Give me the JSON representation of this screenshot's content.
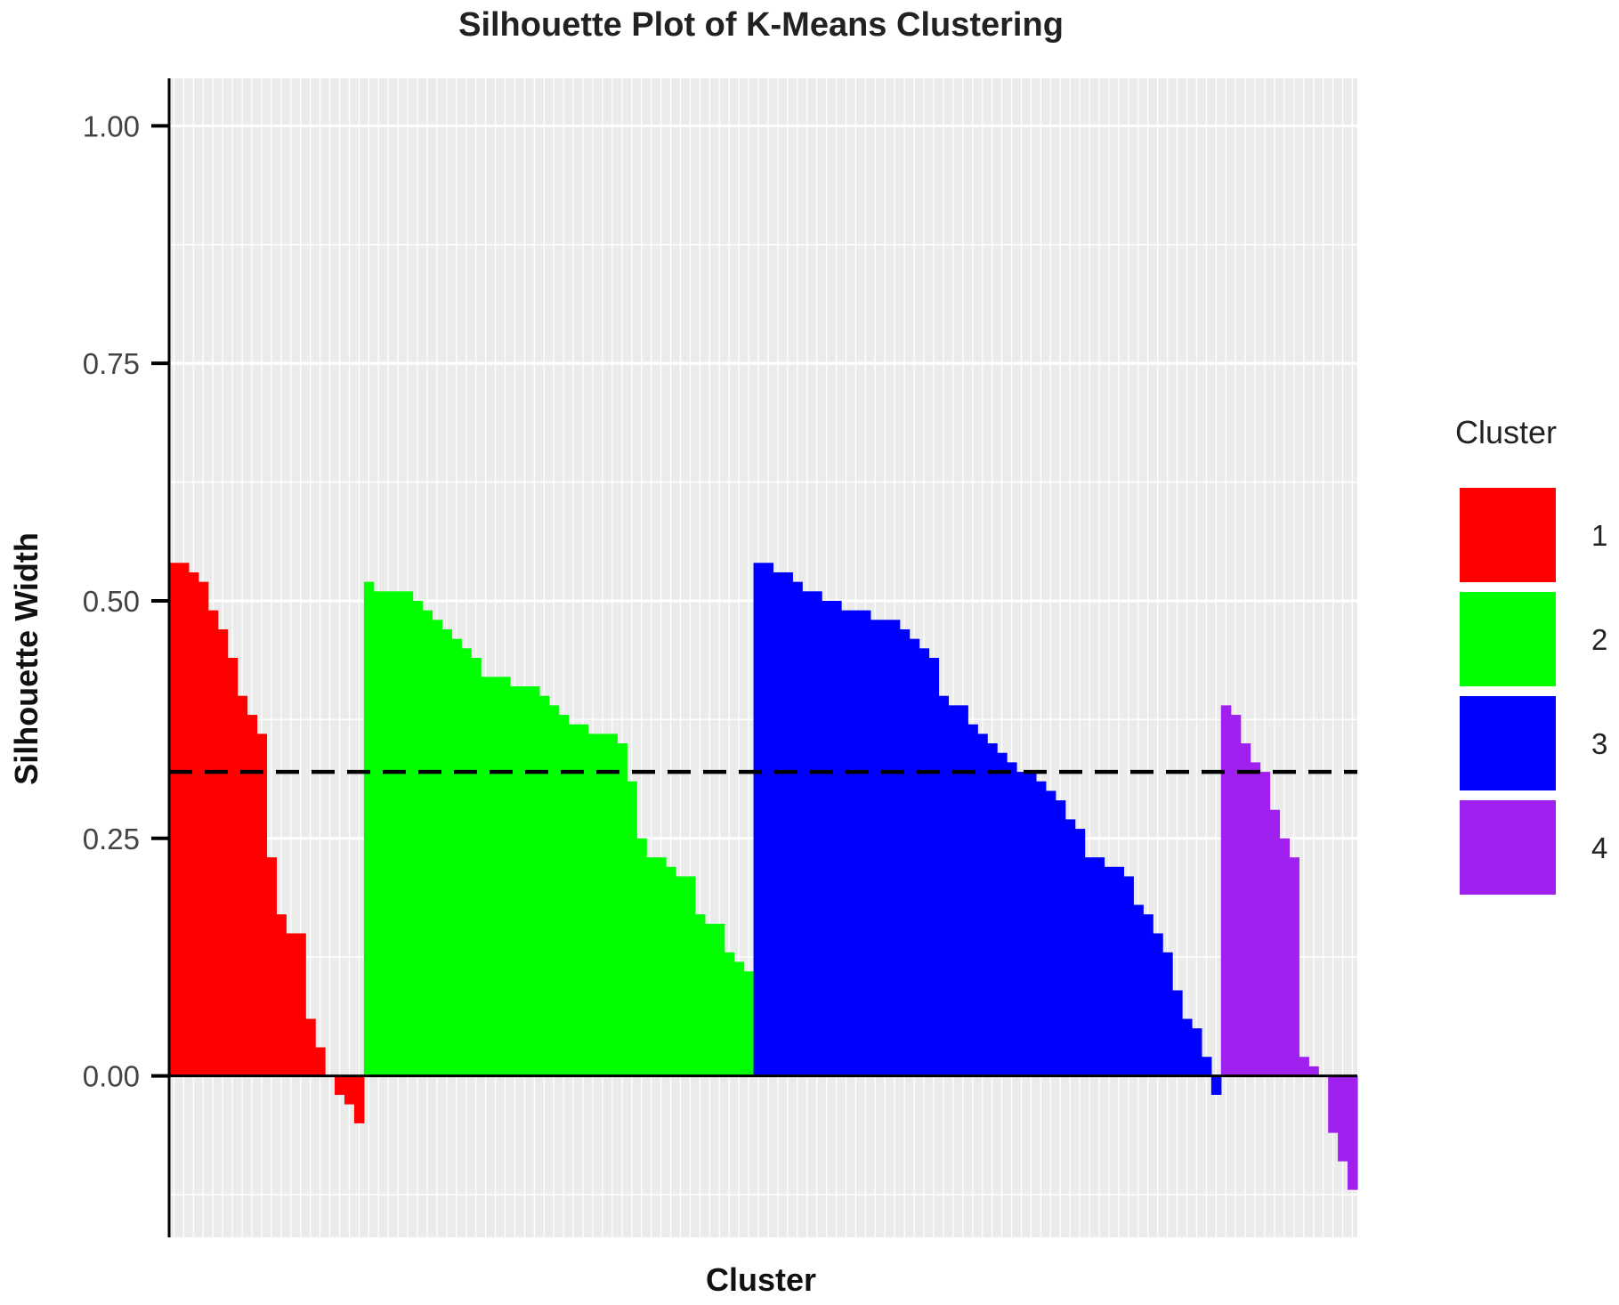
{
  "chart_data": {
    "type": "bar",
    "title": "Silhouette Plot of K-Means Clustering",
    "xlabel": "Cluster",
    "ylabel": "Silhouette Width",
    "ylim": [
      -0.17,
      1.05
    ],
    "yticks": [
      0,
      0.25,
      0.5,
      0.75,
      1
    ],
    "ytick_labels": [
      "0.00",
      "0.25",
      "0.50",
      "0.75",
      "1.00"
    ],
    "average_silhouette_width": 0.32,
    "grid": true,
    "legend": {
      "title": "Cluster",
      "position": "right"
    },
    "series": [
      {
        "name": "1",
        "color": "#ff0000",
        "values": [
          0.54,
          0.54,
          0.53,
          0.52,
          0.49,
          0.47,
          0.44,
          0.4,
          0.38,
          0.36,
          0.23,
          0.17,
          0.15,
          0.15,
          0.06,
          0.03,
          0.0,
          -0.02,
          -0.03,
          -0.05
        ]
      },
      {
        "name": "2",
        "color": "#00ff00",
        "values": [
          0.52,
          0.51,
          0.51,
          0.51,
          0.51,
          0.5,
          0.49,
          0.48,
          0.47,
          0.46,
          0.45,
          0.44,
          0.42,
          0.42,
          0.42,
          0.41,
          0.41,
          0.41,
          0.4,
          0.39,
          0.38,
          0.37,
          0.37,
          0.36,
          0.36,
          0.36,
          0.35,
          0.31,
          0.25,
          0.23,
          0.23,
          0.22,
          0.21,
          0.21,
          0.17,
          0.16,
          0.16,
          0.13,
          0.12,
          0.11
        ]
      },
      {
        "name": "3",
        "color": "#0000ff",
        "values": [
          0.54,
          0.54,
          0.53,
          0.53,
          0.52,
          0.51,
          0.51,
          0.5,
          0.5,
          0.49,
          0.49,
          0.49,
          0.48,
          0.48,
          0.48,
          0.47,
          0.46,
          0.45,
          0.44,
          0.4,
          0.39,
          0.39,
          0.37,
          0.36,
          0.35,
          0.34,
          0.33,
          0.32,
          0.32,
          0.31,
          0.3,
          0.29,
          0.27,
          0.26,
          0.23,
          0.23,
          0.22,
          0.22,
          0.21,
          0.18,
          0.17,
          0.15,
          0.13,
          0.09,
          0.06,
          0.05,
          0.02,
          -0.02
        ]
      },
      {
        "name": "4",
        "color": "#a020f0",
        "values": [
          0.39,
          0.38,
          0.35,
          0.33,
          0.32,
          0.28,
          0.25,
          0.23,
          0.02,
          0.01,
          0.0,
          -0.06,
          -0.09,
          -0.12
        ]
      }
    ]
  }
}
